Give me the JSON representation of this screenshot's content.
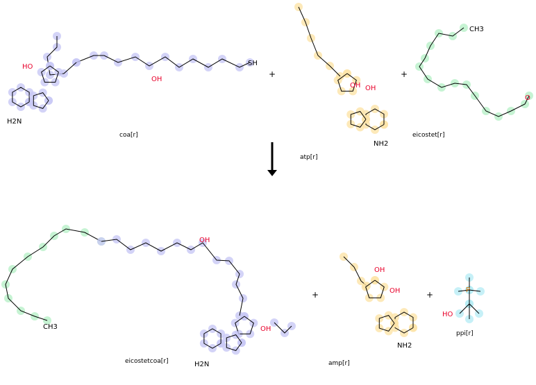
{
  "reaction": {
    "reactants": [
      {
        "name": "coa[r]",
        "highlight": "#c8c8f5"
      },
      {
        "name": "atp[r]",
        "highlight": "#fde4a8"
      },
      {
        "name": "eicostet[r]",
        "highlight": "#b8f0c8"
      }
    ],
    "products": [
      {
        "name": "eicostetcoa[r]",
        "highlight": "#c8c8f5"
      },
      {
        "name": "amp[r]",
        "highlight": "#fde4a8"
      },
      {
        "name": "ppi[r]",
        "highlight": "#b8ecf5"
      }
    ],
    "plus": "+",
    "arrow": "reaction-arrow-down"
  },
  "groups": {
    "coa_sh": "SH",
    "coa_nh2": "H2N",
    "coa_oh": "OH",
    "coa_ho": "HO",
    "atp_nh2": "NH2",
    "atp_oh1": "OH",
    "atp_oh2": "OH",
    "eicostet_ch3": "CH3",
    "eicostet_o": "O",
    "eicostetcoa_ch3": "CH3",
    "eicostetcoa_nh2": "H2N",
    "eicostetcoa_oh": "OH",
    "eicostetcoa_oh2": "OH",
    "amp_nh2": "NH2",
    "amp_oh1": "OH",
    "amp_oh2": "OH",
    "ppi_ho": "HO",
    "ppi_p": "P"
  },
  "colors": {
    "coa": "#c8c8f5",
    "atp": "#fde4a8",
    "eicostet": "#b8f0c8",
    "ppi": "#b8ecf5",
    "oxygen": "#e8002a",
    "nitrogen": "#3050f8",
    "phosphorus": "#e07000"
  }
}
